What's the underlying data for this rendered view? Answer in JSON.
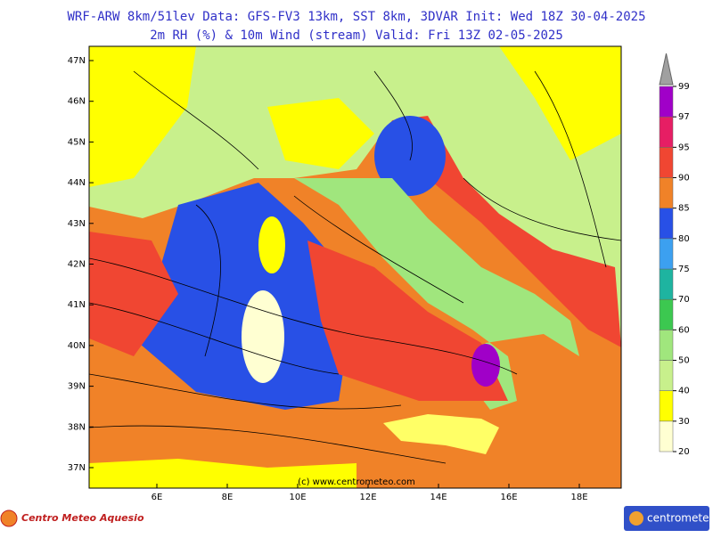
{
  "header": {
    "line1": "WRF-ARW 8km/51lev  Data: GFS-FV3 13km, SST 8km, 3DVAR  Init: Wed 18Z 30-04-2025",
    "line2": "2m RH (%) & 10m Wind (stream)  Valid: Fri 13Z 02-05-2025"
  },
  "map": {
    "lat_labels": [
      "47N",
      "46N",
      "45N",
      "44N",
      "43N",
      "42N",
      "41N",
      "40N",
      "39N",
      "38N",
      "37N"
    ],
    "lon_labels": [
      "6E",
      "8E",
      "10E",
      "12E",
      "14E",
      "16E",
      "18E"
    ],
    "watermark": "(c) www.centrometeo.com"
  },
  "colorbar": {
    "levels": [
      20,
      30,
      40,
      50,
      60,
      70,
      75,
      80,
      85,
      90,
      95,
      97,
      99
    ],
    "colors": [
      "#ffffd2",
      "#ffff00",
      "#c8f08c",
      "#a0e67d",
      "#3cc850",
      "#1eb4a0",
      "#3ca0f0",
      "#2850e6",
      "#f08228",
      "#f04632",
      "#e61e64",
      "#a000c8"
    ]
  },
  "footer": {
    "left_logo": "Centro Meteo Aquesio",
    "right_logo": "centrometeo"
  }
}
